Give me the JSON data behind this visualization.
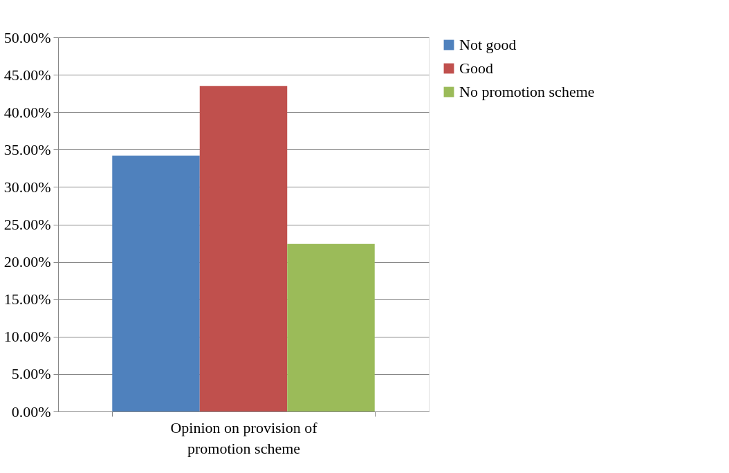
{
  "chart_data": {
    "type": "bar",
    "categories": [
      "Opinion on provision of promotion scheme"
    ],
    "series": [
      {
        "name": "Not good",
        "color": "#4f81bd",
        "values": [
          34.2
        ]
      },
      {
        "name": "Good",
        "color": "#c0504d",
        "values": [
          43.5
        ]
      },
      {
        "name": "No promotion scheme",
        "color": "#9bbb59",
        "values": [
          22.4
        ]
      }
    ],
    "ylim": [
      0,
      50
    ],
    "yticks": [
      {
        "value": 0,
        "label": "0.00%"
      },
      {
        "value": 5,
        "label": "5.00%"
      },
      {
        "value": 10,
        "label": "10.00%"
      },
      {
        "value": 15,
        "label": "15.00%"
      },
      {
        "value": 20,
        "label": "20.00%"
      },
      {
        "value": 25,
        "label": "25.00%"
      },
      {
        "value": 30,
        "label": "30.00%"
      },
      {
        "value": 35,
        "label": "35.00%"
      },
      {
        "value": 40,
        "label": "40.00%"
      },
      {
        "value": 45,
        "label": "45.00%"
      },
      {
        "value": 50,
        "label": "50.00%"
      }
    ],
    "grid": "y",
    "legend": "right"
  }
}
